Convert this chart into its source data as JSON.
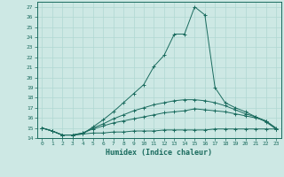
{
  "xlabel": "Humidex (Indice chaleur)",
  "background_color": "#cde8e4",
  "line_color": "#1a6b5e",
  "grid_color": "#b0d8d2",
  "xlim": [
    -0.5,
    23.5
  ],
  "ylim": [
    14,
    27.5
  ],
  "yticks": [
    14,
    15,
    16,
    17,
    18,
    19,
    20,
    21,
    22,
    23,
    24,
    25,
    26,
    27
  ],
  "xticks": [
    0,
    1,
    2,
    3,
    4,
    5,
    6,
    7,
    8,
    9,
    10,
    11,
    12,
    13,
    14,
    15,
    16,
    17,
    18,
    19,
    20,
    21,
    22,
    23
  ],
  "series_main": {
    "x": [
      0,
      1,
      2,
      3,
      4,
      5,
      6,
      7,
      8,
      9,
      10,
      11,
      12,
      13,
      14,
      15,
      16,
      17,
      18,
      19,
      20,
      21,
      22,
      23
    ],
    "y": [
      15.0,
      14.7,
      14.3,
      14.3,
      14.4,
      15.1,
      15.8,
      16.6,
      17.5,
      18.4,
      19.3,
      21.1,
      22.2,
      24.3,
      24.3,
      27.0,
      26.2,
      19.0,
      17.5,
      17.0,
      16.6,
      16.1,
      15.7,
      15.0
    ]
  },
  "series_flat": {
    "x": [
      0,
      1,
      2,
      3,
      4,
      5,
      6,
      7,
      8,
      9,
      10,
      11,
      12,
      13,
      14,
      15,
      16,
      17,
      18,
      19,
      20,
      21,
      22,
      23
    ],
    "y": [
      15.0,
      14.7,
      14.3,
      14.3,
      14.4,
      14.5,
      14.5,
      14.6,
      14.6,
      14.7,
      14.7,
      14.7,
      14.8,
      14.8,
      14.8,
      14.8,
      14.8,
      14.9,
      14.9,
      14.9,
      14.9,
      14.9,
      14.9,
      14.9
    ]
  },
  "series_low": {
    "x": [
      0,
      1,
      2,
      3,
      4,
      5,
      6,
      7,
      8,
      9,
      10,
      11,
      12,
      13,
      14,
      15,
      16,
      17,
      18,
      19,
      20,
      21,
      22,
      23
    ],
    "y": [
      15.0,
      14.7,
      14.3,
      14.3,
      14.5,
      14.9,
      15.2,
      15.5,
      15.7,
      15.9,
      16.1,
      16.3,
      16.5,
      16.6,
      16.7,
      16.9,
      16.8,
      16.7,
      16.6,
      16.4,
      16.2,
      16.0,
      15.7,
      14.9
    ]
  },
  "series_mid": {
    "x": [
      0,
      1,
      2,
      3,
      4,
      5,
      6,
      7,
      8,
      9,
      10,
      11,
      12,
      13,
      14,
      15,
      16,
      17,
      18,
      19,
      20,
      21,
      22,
      23
    ],
    "y": [
      15.0,
      14.7,
      14.3,
      14.3,
      14.5,
      15.0,
      15.4,
      15.9,
      16.3,
      16.7,
      17.0,
      17.3,
      17.5,
      17.7,
      17.8,
      17.8,
      17.7,
      17.5,
      17.2,
      16.8,
      16.4,
      16.1,
      15.6,
      14.9
    ]
  }
}
